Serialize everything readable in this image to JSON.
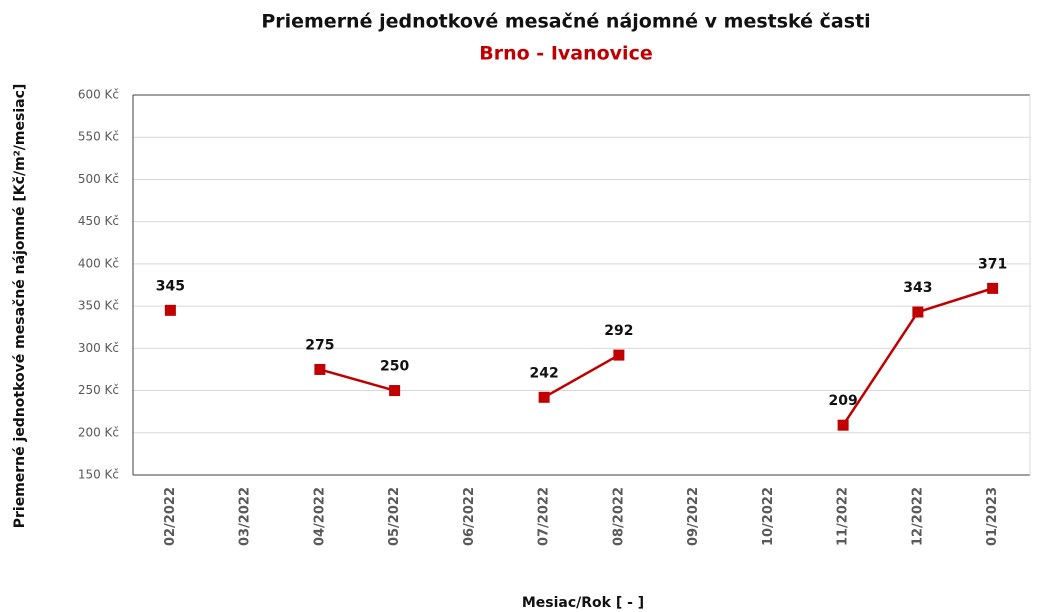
{
  "chart_data": {
    "type": "line",
    "title": "Priemerné jednotkové mesačné nájomné  v mestské časti",
    "subtitle": "Brno - Ivanovice",
    "y_label": "Priemerné jednotkové mesačné nájomné [Kč/m²/mesiac]",
    "x_label": "Mesiac/Rok [ - ]",
    "categories": [
      "02/2022",
      "03/2022",
      "04/2022",
      "05/2022",
      "06/2022",
      "07/2022",
      "08/2022",
      "09/2022",
      "10/2022",
      "11/2022",
      "12/2022",
      "01/2023"
    ],
    "series": [
      {
        "name": "Brno - Ivanovice",
        "color": "#c00000",
        "values": [
          345,
          null,
          275,
          250,
          null,
          242,
          292,
          null,
          null,
          209,
          343,
          371
        ]
      }
    ],
    "ylim": [
      150,
      600
    ],
    "yticks": [
      {
        "value": 150,
        "label": "150 Kč"
      },
      {
        "value": 200,
        "label": "200 Kč"
      },
      {
        "value": 250,
        "label": "250 Kč"
      },
      {
        "value": 300,
        "label": "300 Kč"
      },
      {
        "value": 350,
        "label": "350 Kč"
      },
      {
        "value": 400,
        "label": "400 Kč"
      },
      {
        "value": 450,
        "label": "450 Kč"
      },
      {
        "value": 500,
        "label": "500 Kč"
      },
      {
        "value": 550,
        "label": "550 Kč"
      },
      {
        "value": 600,
        "label": "600 Kč"
      }
    ],
    "grid": true
  }
}
